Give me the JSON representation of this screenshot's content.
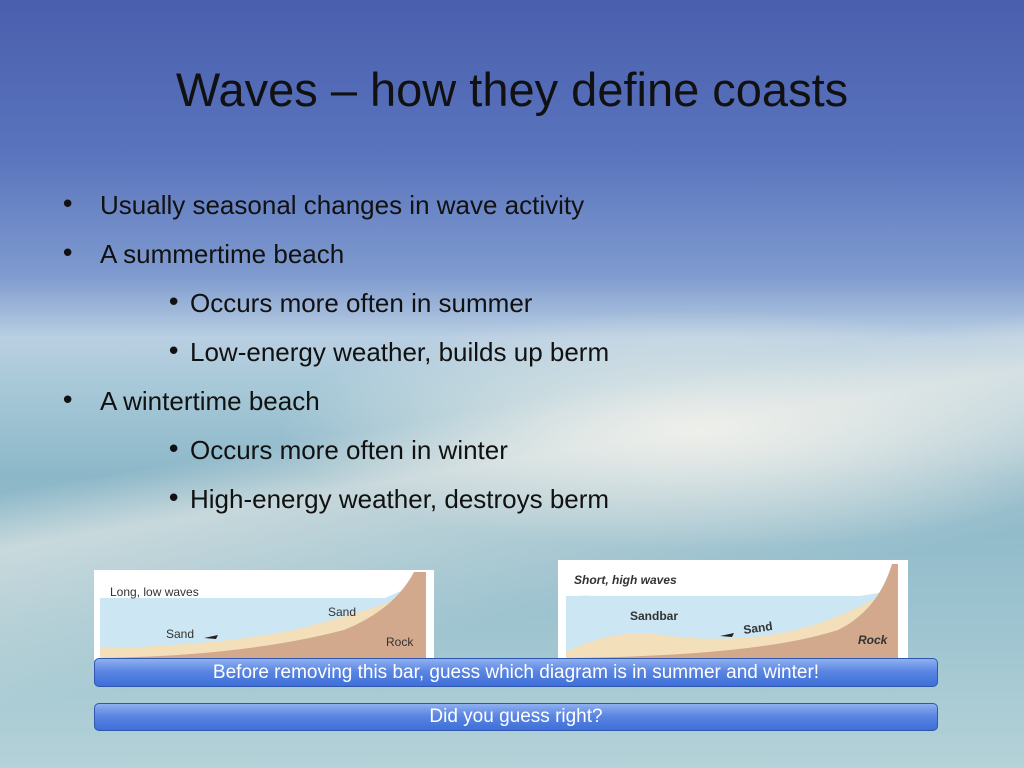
{
  "slide": {
    "title": "Waves – how they define coasts",
    "bullets": [
      {
        "text": "Usually seasonal changes in wave activity"
      },
      {
        "text": "A summertime beach",
        "sub": [
          "Occurs more often in summer",
          "Low-energy weather, builds up berm"
        ]
      },
      {
        "text": "A wintertime beach",
        "sub": [
          "Occurs more often in winter",
          "High-energy weather, destroys berm"
        ]
      }
    ],
    "diagrams": [
      {
        "caption": "Long, low waves",
        "labels": [
          "Sand",
          "Sand",
          "Rock"
        ]
      },
      {
        "caption": "Short, high waves",
        "labels": [
          "Sandbar",
          "Sand",
          "Rock"
        ]
      }
    ],
    "bars": [
      "Before removing this bar, guess which diagram is in summer and winter!",
      "Did you guess right?"
    ]
  }
}
